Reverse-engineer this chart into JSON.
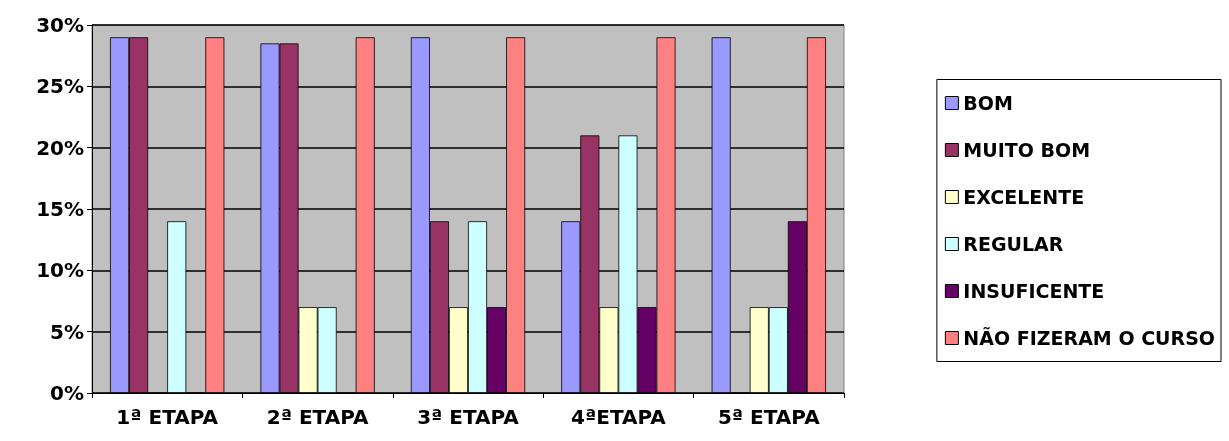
{
  "chart_data": {
    "type": "bar",
    "categories": [
      "1ª ETAPA",
      "2ª ETAPA",
      "3ª ETAPA",
      "4ªETAPA",
      "5ª ETAPA"
    ],
    "series": [
      {
        "name": "BOM",
        "color": "#9999ff",
        "values": [
          29,
          28.5,
          29,
          14,
          29
        ]
      },
      {
        "name": "MUITO BOM",
        "color": "#993366",
        "values": [
          29,
          28.5,
          14,
          21,
          0
        ]
      },
      {
        "name": "EXCELENTE",
        "color": "#ffffcc",
        "values": [
          0,
          7,
          7,
          7,
          7
        ]
      },
      {
        "name": "REGULAR",
        "color": "#ccffff",
        "values": [
          14,
          7,
          14,
          21,
          7
        ]
      },
      {
        "name": "INSUFICENTE",
        "color": "#660066",
        "values": [
          0,
          0,
          7,
          7,
          14
        ]
      },
      {
        "name": "NÃO FIZERAM O CURSO",
        "color": "#ff8080",
        "values": [
          29,
          29,
          29,
          29,
          29
        ]
      }
    ],
    "ylim": [
      0,
      30
    ],
    "yticks": [
      {
        "value": 0,
        "label": "0%"
      },
      {
        "value": 5,
        "label": "5%"
      },
      {
        "value": 10,
        "label": "10%"
      },
      {
        "value": 15,
        "label": "15%"
      },
      {
        "value": 20,
        "label": "20%"
      },
      {
        "value": 25,
        "label": "25%"
      },
      {
        "value": 30,
        "label": "30%"
      }
    ],
    "grid": true,
    "legend": "right"
  }
}
